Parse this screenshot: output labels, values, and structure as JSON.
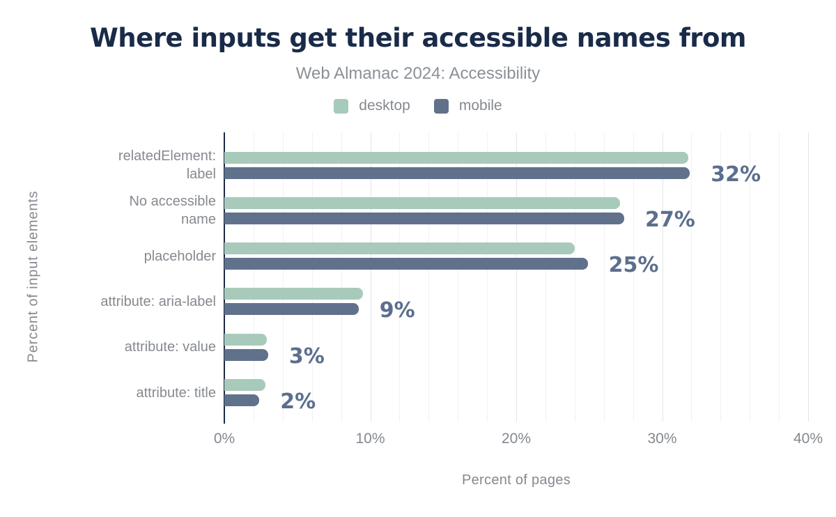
{
  "chart_data": {
    "type": "bar",
    "orientation": "horizontal",
    "title": "Where inputs get their accessible names from",
    "subtitle": "Web Almanac 2024: Accessibility",
    "categories": [
      "relatedElement: label",
      "No accessible name",
      "placeholder",
      "attribute: aria-label",
      "attribute: value",
      "attribute: title"
    ],
    "category_label_lines": [
      [
        "relatedElement:",
        "label"
      ],
      [
        "No accessible",
        "name"
      ],
      [
        "placeholder"
      ],
      [
        "attribute: aria-label"
      ],
      [
        "attribute: value"
      ],
      [
        "attribute: title"
      ]
    ],
    "series": [
      {
        "name": "desktop",
        "color": "#a8caba",
        "values": [
          31.8,
          27.1,
          24.0,
          9.5,
          2.9,
          2.8
        ]
      },
      {
        "name": "mobile",
        "color": "#60718b",
        "values": [
          31.9,
          27.4,
          24.9,
          9.2,
          3.0,
          2.4
        ]
      }
    ],
    "value_labels": [
      "32%",
      "27%",
      "25%",
      "9%",
      "3%",
      "2%"
    ],
    "value_label_series": "mobile",
    "xlabel": "Percent of pages",
    "ylabel": "Percent of input elements",
    "x_ticks": [
      "0%",
      "10%",
      "20%",
      "30%",
      "40%"
    ],
    "x_tick_values": [
      0,
      10,
      20,
      30,
      40
    ],
    "xlim": [
      0,
      40
    ],
    "grid": {
      "minor_step": 2,
      "major_step": 10,
      "direction": "vertical"
    },
    "legend_position": "top-center",
    "colors": {
      "title": "#1a2b49",
      "subtitle": "#8b9097",
      "axis_line": "#1c2a45",
      "tick_label": "#84888f",
      "category_label": "#85898f",
      "value_label": "#5b6e8e",
      "grid_minor": "#f1f1f2",
      "grid_major": "#e4e5e8"
    }
  }
}
